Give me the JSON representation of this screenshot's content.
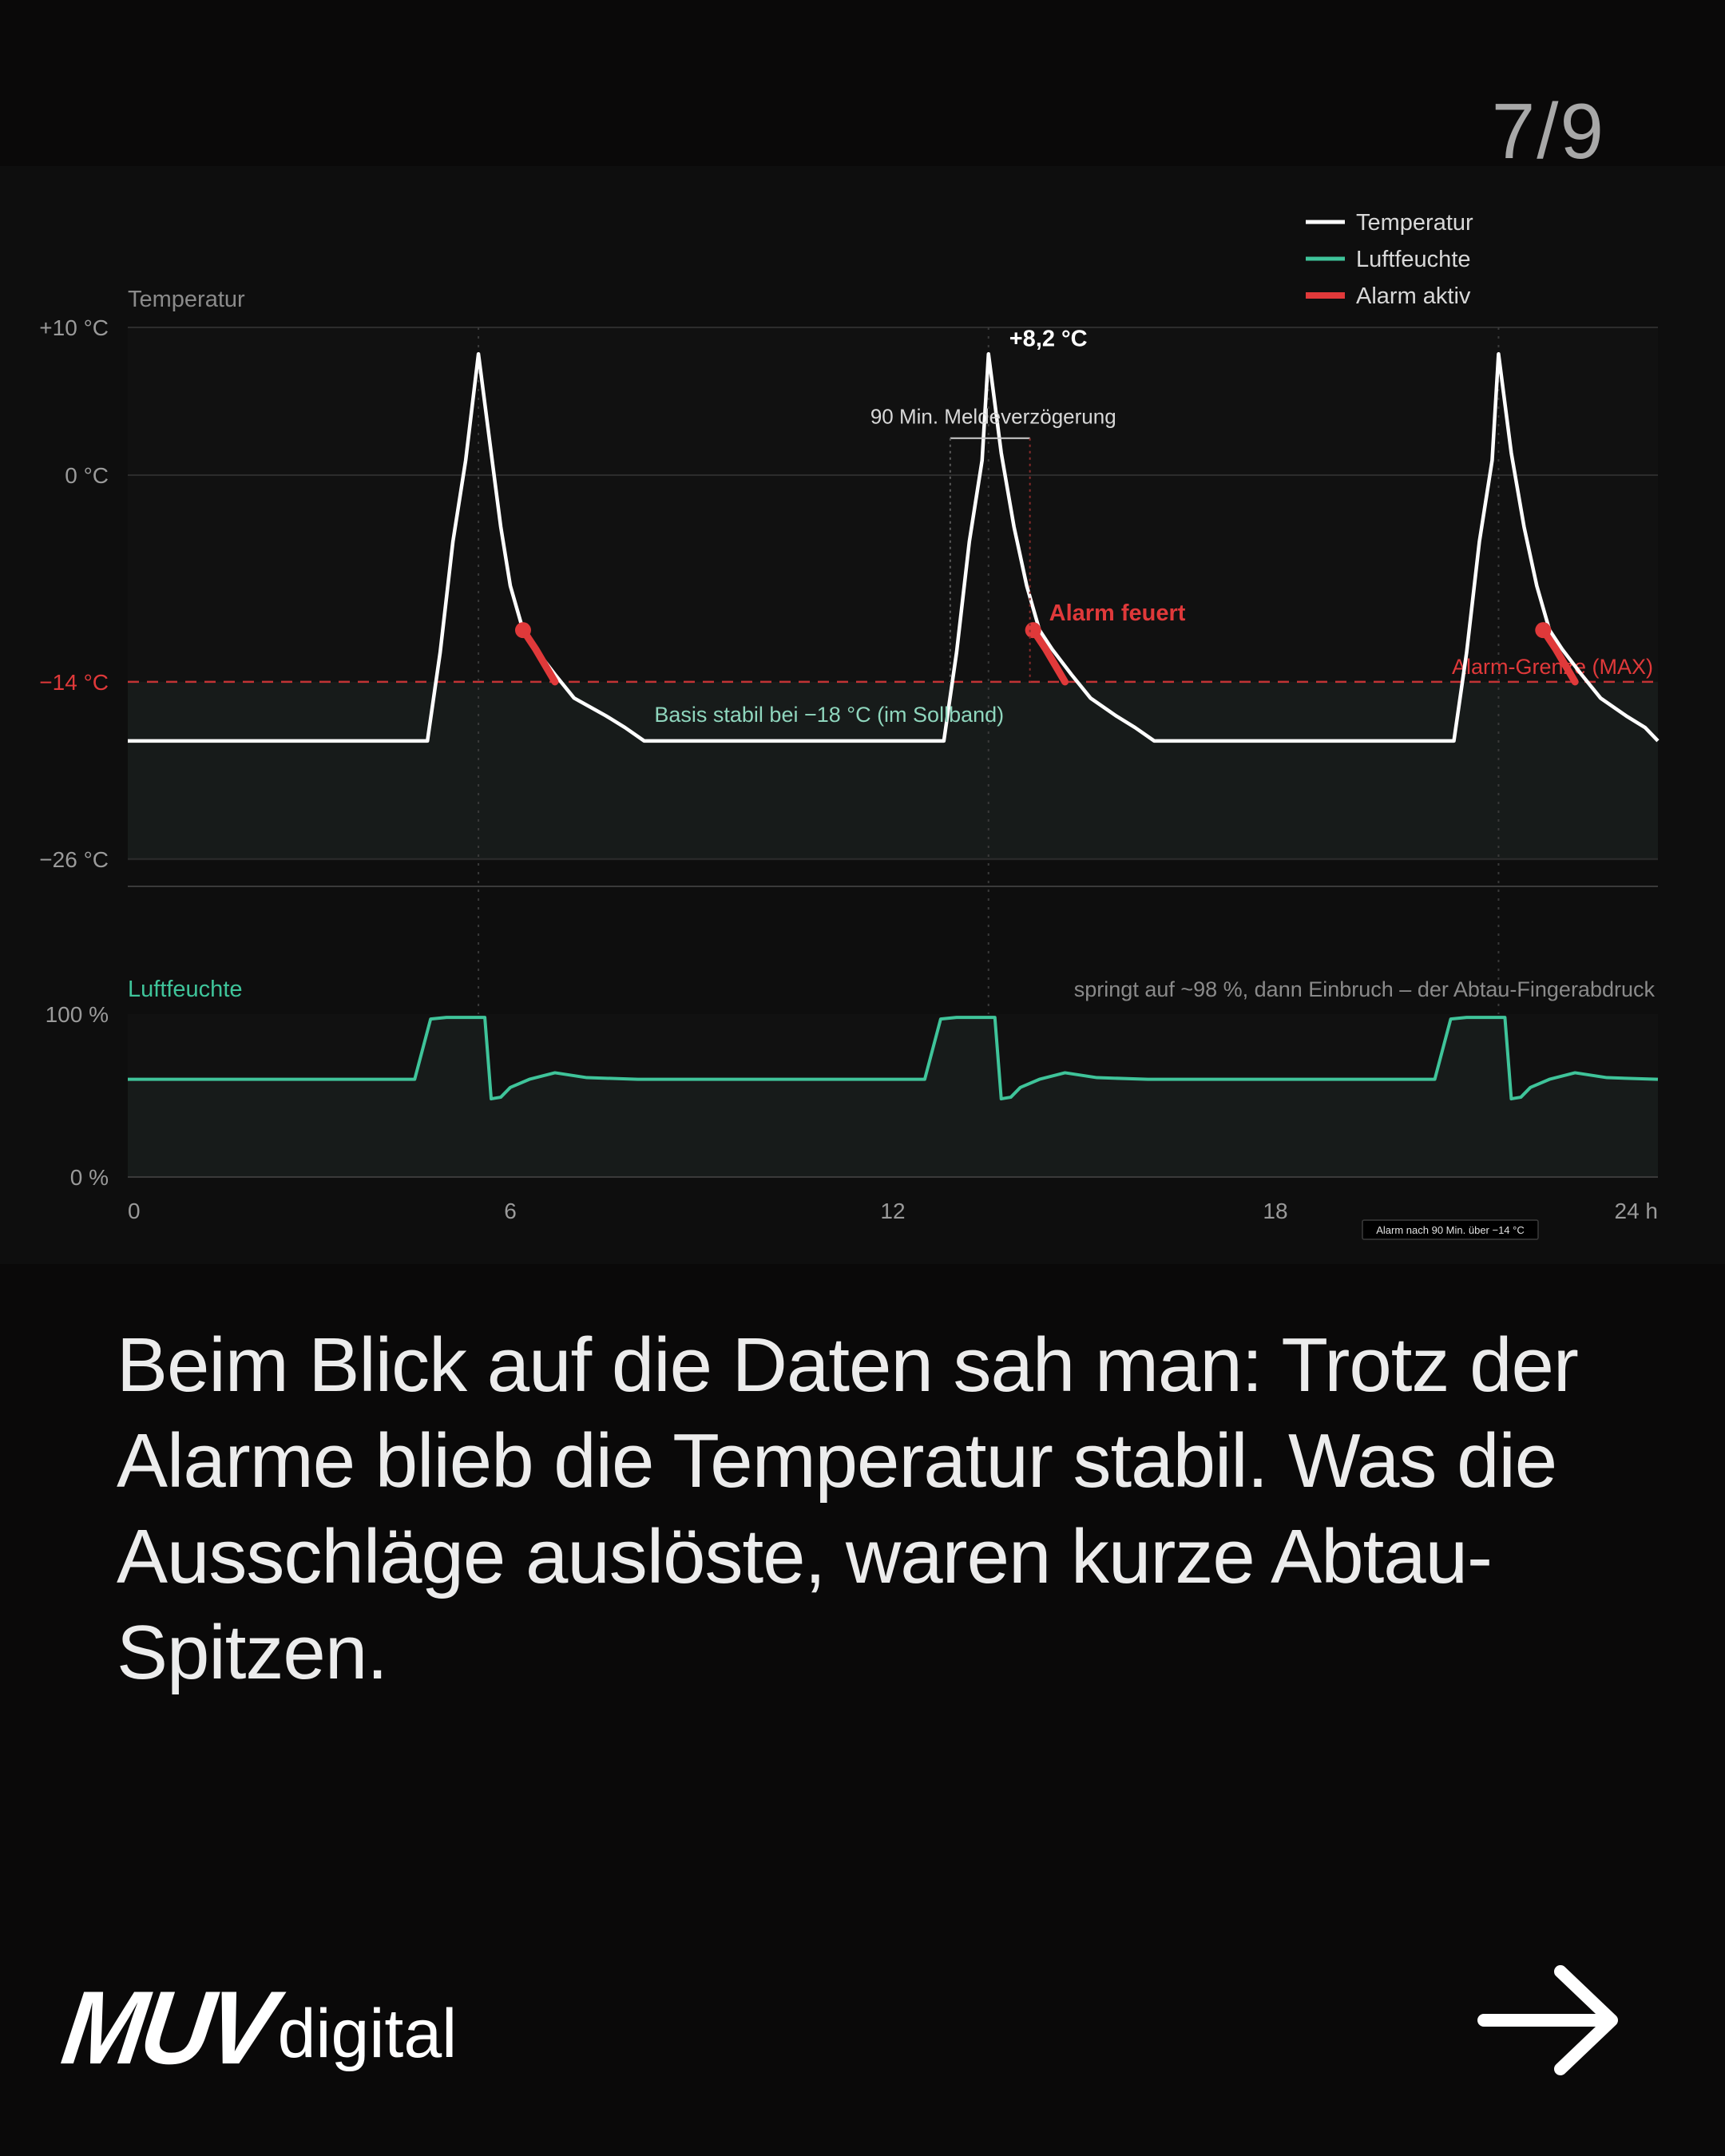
{
  "page_counter": "7/9",
  "caption": "Beim Blick auf die Daten sah man: Trotz der Alarme blieb die Temperatur stabil. Was die Ausschläge auslöste, waren kurze Abtau-Spitzen.",
  "brand": {
    "mark": "MUV",
    "name": "digital"
  },
  "icons": {
    "next": "arrow-right-icon"
  },
  "colors": {
    "background": "#0a0909",
    "temperature": "#ffffff",
    "humidity": "#3fc49a",
    "alarm": "#e0393a",
    "band_fill": "#171b1a"
  },
  "chart_data": [
    {
      "type": "line",
      "panel_label": "Temperatur",
      "ylabel_ticks": [
        "+10 °C",
        "0 °C",
        "−14 °C",
        "−26 °C"
      ],
      "yticks": [
        10,
        0,
        -14,
        -26
      ],
      "ylim": [
        -28,
        10
      ],
      "xlim": [
        0,
        24
      ],
      "threshold": {
        "value": -14,
        "label": "Alarm-Grenze (MAX)"
      },
      "series": [
        {
          "name": "Temperatur",
          "x": [
            0,
            4.7,
            4.9,
            5.1,
            5.3,
            5.5,
            5.7,
            5.85,
            6.0,
            6.2,
            6.4,
            6.7,
            7.0,
            7.5,
            7.8,
            8.1,
            12.8,
            13.0,
            13.2,
            13.4,
            13.5,
            13.7,
            13.9,
            14.1,
            14.3,
            14.5,
            14.8,
            15.1,
            15.5,
            15.8,
            16.1,
            20.8,
            21.0,
            21.2,
            21.4,
            21.5,
            21.7,
            21.9,
            22.1,
            22.3,
            22.5,
            22.8,
            23.1,
            23.5,
            23.8,
            24.0
          ],
          "y": [
            -18,
            -18,
            -12,
            -4.5,
            1,
            8.2,
            1.5,
            -3.5,
            -7.5,
            -10.5,
            -11.8,
            -13.5,
            -15.1,
            -16.3,
            -17.1,
            -18,
            -18,
            -12,
            -4.5,
            1,
            8.2,
            1.5,
            -3.5,
            -7.5,
            -10.5,
            -11.8,
            -13.5,
            -15.1,
            -16.3,
            -17.1,
            -18,
            -18,
            -12,
            -4.5,
            1,
            8.2,
            1.5,
            -3.5,
            -7.5,
            -10.5,
            -11.8,
            -13.5,
            -15.1,
            -16.3,
            -17.1,
            -18
          ]
        },
        {
          "name": "Alarm aktiv",
          "segments": [
            {
              "x": [
                6.2,
                6.4,
                6.7
              ],
              "y": [
                -10.5,
                -11.8,
                -14
              ]
            },
            {
              "x": [
                14.2,
                14.4,
                14.7
              ],
              "y": [
                -10.5,
                -11.8,
                -14
              ]
            },
            {
              "x": [
                22.2,
                22.4,
                22.7
              ],
              "y": [
                -10.5,
                -11.8,
                -14
              ]
            }
          ]
        }
      ],
      "annotations": [
        {
          "text": "+8,2 °C",
          "x": 13.5,
          "y": 8.2
        },
        {
          "text": "90 Min. Meldeverzögerung",
          "x": 13.5,
          "y": 3.5
        },
        {
          "text": "Alarm feuert",
          "x": 14.2,
          "y": -10.5
        },
        {
          "text": "Basis stabil bei −18 °C (im Sollband)",
          "x": 10.5,
          "y": -16.5
        }
      ]
    },
    {
      "type": "area",
      "panel_label": "Luftfeuchte",
      "ylabel_ticks": [
        "100 %",
        "0 %"
      ],
      "yticks": [
        100,
        0
      ],
      "ylim": [
        0,
        100
      ],
      "xticks": [
        0,
        6,
        12,
        18,
        24
      ],
      "xtick_labels": [
        "0",
        "6",
        "12",
        "18",
        "24 h"
      ],
      "series": [
        {
          "name": "Luftfeuchte",
          "x": [
            0,
            4.5,
            4.75,
            5.0,
            5.6,
            5.7,
            5.85,
            6.0,
            6.3,
            6.7,
            7.2,
            8.0,
            12.5,
            12.75,
            13.0,
            13.6,
            13.7,
            13.85,
            14.0,
            14.3,
            14.7,
            15.2,
            16.0,
            20.5,
            20.75,
            21.0,
            21.6,
            21.7,
            21.85,
            22.0,
            22.3,
            22.7,
            23.2,
            24.0
          ],
          "y": [
            60,
            60,
            97,
            98,
            98,
            48,
            49,
            55,
            60,
            64,
            61,
            60,
            60,
            97,
            98,
            98,
            48,
            49,
            55,
            60,
            64,
            61,
            60,
            60,
            97,
            98,
            98,
            48,
            49,
            55,
            60,
            64,
            61,
            60
          ]
        }
      ],
      "annotations": [
        {
          "text": "springt auf ~98 %, dann Einbruch – der Abtau-Fingerabdruck"
        }
      ]
    }
  ],
  "legend": [
    {
      "label": "Temperatur",
      "color": "#ffffff"
    },
    {
      "label": "Luftfeuchte",
      "color": "#3fc49a"
    },
    {
      "label": "Alarm aktiv",
      "color": "#e0393a"
    }
  ],
  "footnote": "Alarm nach 90 Min. über −14 °C"
}
